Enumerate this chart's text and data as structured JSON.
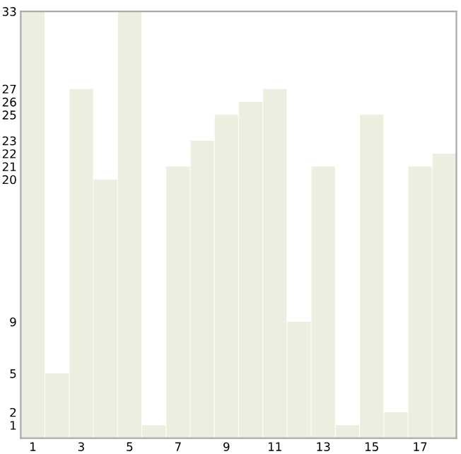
{
  "chart_data": {
    "type": "bar",
    "categories": [
      "1",
      null,
      "3",
      null,
      "5",
      null,
      "7",
      null,
      "9",
      null,
      "11",
      null,
      "13",
      null,
      "15",
      null,
      "17",
      null
    ],
    "values": [
      33,
      5,
      27,
      20,
      33,
      1,
      21,
      23,
      25,
      26,
      27,
      9,
      21,
      1,
      25,
      2,
      21,
      22
    ],
    "color": "#eeeee0",
    "ylim": [
      0,
      33
    ],
    "yticks": [
      1,
      2,
      5,
      9,
      20,
      21,
      22,
      23,
      25,
      26,
      27,
      33
    ],
    "grid": false
  }
}
